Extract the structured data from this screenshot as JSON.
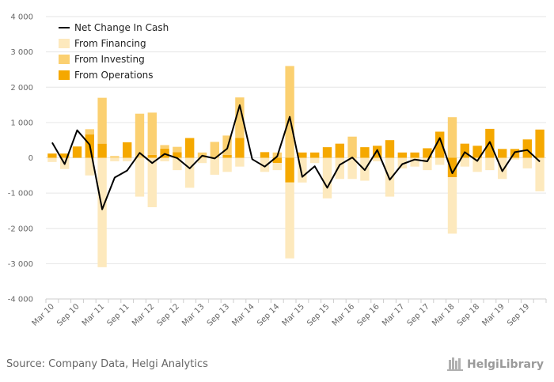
{
  "chart_data": {
    "type": "bar",
    "title": "",
    "xlabel": "",
    "ylabel": "",
    "ylim": [
      -4000,
      4000
    ],
    "yticks": [
      4000,
      3000,
      2000,
      1000,
      0,
      -1000,
      -2000,
      -3000,
      -4000
    ],
    "ytick_labels": [
      "4 000",
      "3 000",
      "2 000",
      "1 000",
      "0",
      "-1 000",
      "-2 000",
      "-3 000",
      "-4 000"
    ],
    "categories": [
      "Mar 10",
      "Jun 10",
      "Sep 10",
      "Dec 10",
      "Mar 11",
      "Jun 11",
      "Sep 11",
      "Dec 11",
      "Mar 12",
      "Jun 12",
      "Sep 12",
      "Dec 12",
      "Mar 13",
      "Jun 13",
      "Sep 13",
      "Dec 13",
      "Mar 14",
      "Jun 14",
      "Sep 14",
      "Dec 14",
      "Mar 15",
      "Jun 15",
      "Sep 15",
      "Dec 15",
      "Mar 16",
      "Jun 16",
      "Sep 16",
      "Dec 16",
      "Mar 17",
      "Jun 17",
      "Sep 17",
      "Dec 17",
      "Mar 18",
      "Jun 18",
      "Sep 18",
      "Dec 18",
      "Mar 19",
      "Jun 19",
      "Sep 19",
      "Dec 19"
    ],
    "xtick_labels": [
      "Mar 10",
      "Sep 10",
      "Mar 11",
      "Sep 11",
      "Mar 12",
      "Sep 12",
      "Mar 13",
      "Sep 13",
      "Mar 14",
      "Sep 14",
      "Mar 15",
      "Sep 15",
      "Mar 16",
      "Sep 16",
      "Mar 17",
      "Sep 17",
      "Mar 18",
      "Sep 18",
      "Mar 19",
      "Sep 19"
    ],
    "stacked": true,
    "series": [
      {
        "name": "From Financing",
        "color": "#fde9bd",
        "values": [
          -120,
          -320,
          0,
          -500,
          -3100,
          -100,
          -100,
          -1100,
          -1400,
          -100,
          -350,
          -850,
          -150,
          -480,
          -400,
          -250,
          0,
          -400,
          -200,
          -2150,
          -700,
          -150,
          -1150,
          -600,
          -600,
          -650,
          -100,
          -1100,
          -300,
          -250,
          -350,
          -200,
          -1600,
          -250,
          -400,
          -350,
          -600,
          -50,
          -300,
          -950
        ]
      },
      {
        "name": "From Investing",
        "color": "#fbd071",
        "values": [
          0,
          0,
          0,
          150,
          1300,
          50,
          0,
          1250,
          1200,
          100,
          150,
          0,
          150,
          450,
          550,
          1150,
          0,
          0,
          150,
          2600,
          0,
          0,
          0,
          0,
          600,
          0,
          0,
          0,
          0,
          0,
          0,
          0,
          1150,
          0,
          0,
          0,
          0,
          0,
          0,
          0
        ]
      },
      {
        "name": "From Operations",
        "color": "#f5a800",
        "values": [
          120,
          120,
          320,
          660,
          400,
          0,
          440,
          0,
          80,
          260,
          160,
          560,
          0,
          0,
          80,
          560,
          0,
          160,
          -150,
          -700,
          150,
          150,
          300,
          400,
          0,
          300,
          340,
          500,
          150,
          150,
          270,
          740,
          -550,
          400,
          340,
          820,
          250,
          250,
          520,
          800
        ]
      }
    ],
    "line_series": {
      "name": "Net Change In Cash",
      "color": "#000000",
      "values": [
        430,
        -180,
        780,
        370,
        -1460,
        -560,
        -360,
        140,
        -150,
        110,
        -10,
        -300,
        60,
        -20,
        260,
        1490,
        -40,
        -250,
        40,
        1160,
        -540,
        -240,
        -850,
        -200,
        10,
        -350,
        220,
        -620,
        -180,
        -50,
        -100,
        560,
        -440,
        160,
        -90,
        450,
        -380,
        160,
        220,
        -110
      ]
    },
    "legend": {
      "position": "top-left",
      "order": [
        "Net Change In Cash",
        "From Financing",
        "From Investing",
        "From Operations"
      ]
    },
    "grid": {
      "horizontal": true,
      "vertical": false
    }
  },
  "footer": {
    "source": "Source: Company Data, Helgi Analytics",
    "logo": "HelgiLibrary"
  }
}
